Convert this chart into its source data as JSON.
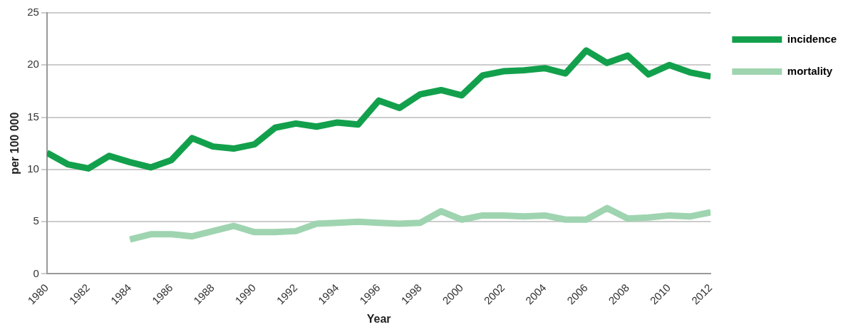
{
  "chart_data": {
    "type": "line",
    "xlabel": "Year",
    "ylabel": "per 100 000",
    "x": [
      1980,
      1981,
      1982,
      1983,
      1984,
      1985,
      1986,
      1987,
      1988,
      1989,
      1990,
      1991,
      1992,
      1993,
      1994,
      1995,
      1996,
      1997,
      1998,
      1999,
      2000,
      2001,
      2002,
      2003,
      2004,
      2005,
      2006,
      2007,
      2008,
      2009,
      2010,
      2011,
      2012
    ],
    "series": [
      {
        "name": "incidence",
        "color": "#13a04c",
        "values": [
          11.6,
          10.5,
          10.1,
          11.3,
          10.7,
          10.2,
          10.9,
          13.0,
          12.2,
          12.0,
          12.4,
          14.0,
          14.4,
          14.1,
          14.5,
          14.3,
          16.6,
          15.9,
          17.2,
          17.6,
          17.1,
          19.0,
          19.4,
          19.5,
          19.7,
          19.2,
          21.4,
          20.2,
          20.9,
          19.1,
          20.0,
          19.3,
          18.9
        ]
      },
      {
        "name": "mortality",
        "color": "#9fd4b0",
        "values": [
          null,
          null,
          null,
          null,
          3.3,
          3.8,
          3.8,
          3.6,
          4.1,
          4.6,
          4.0,
          4.0,
          4.1,
          4.8,
          4.9,
          5.0,
          4.9,
          4.8,
          4.9,
          6.0,
          5.2,
          5.6,
          5.6,
          5.5,
          5.6,
          5.2,
          5.2,
          6.3,
          5.3,
          5.4,
          5.6,
          5.5,
          5.9
        ]
      }
    ],
    "xlim": [
      1980,
      2012
    ],
    "xticks": [
      1980,
      1982,
      1984,
      1986,
      1988,
      1990,
      1992,
      1994,
      1996,
      1998,
      2000,
      2002,
      2004,
      2006,
      2008,
      2010,
      2012
    ],
    "ylim": [
      0,
      25
    ],
    "yticks": [
      0,
      5,
      10,
      15,
      20,
      25
    ],
    "grid": "y",
    "legend": "right",
    "marker": "none",
    "line_style": "solid"
  }
}
